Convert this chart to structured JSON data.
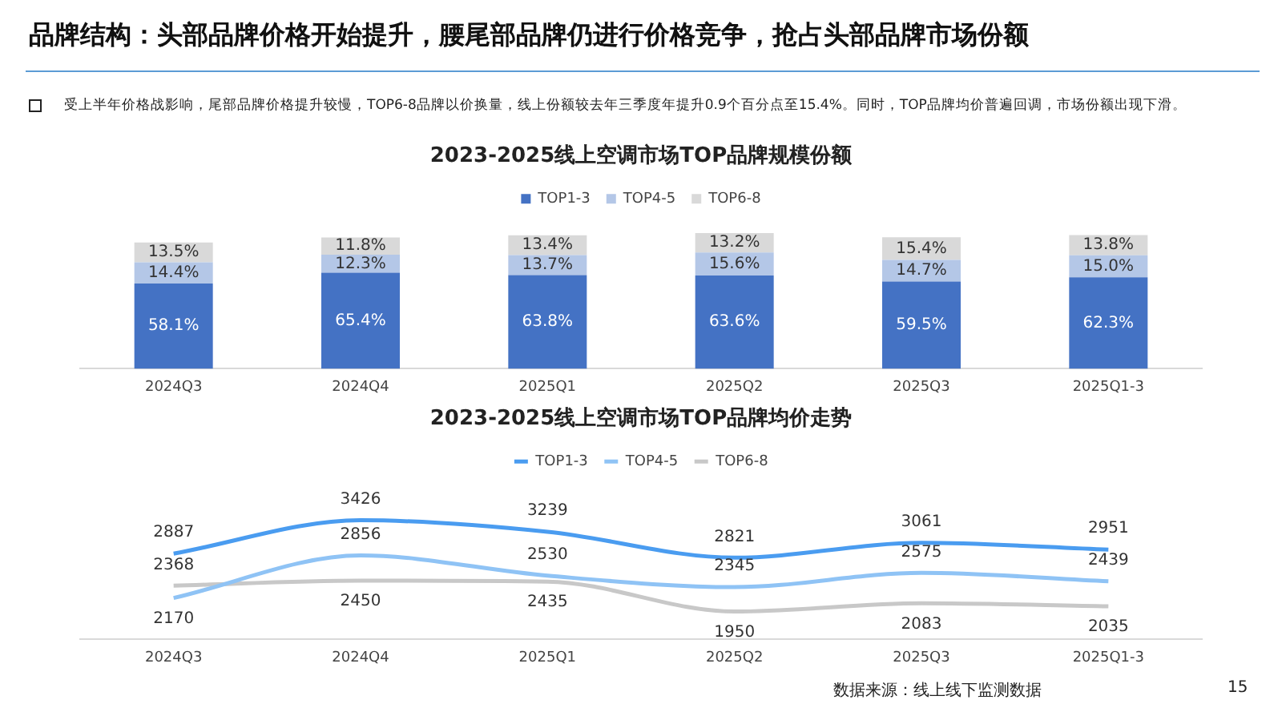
{
  "chart_data": [
    {
      "type": "bar",
      "title": "2023-2025线上空调市场TOP品牌规模份额",
      "stacked": true,
      "legend": "top",
      "annotations": [
        "品牌结构：头部品牌价格开始提升，腰尾部品牌仍进行价格竞争，抢占头部品牌市场份额",
        "受上半年价格战影响，尾部品牌价格提升较慢，TOP6-8品牌以价换量，线上份额较去年三季度年提升0.9个百分点至15.4%。同时，TOP品牌均价普遍回调，市场份额出现下滑。"
      ],
      "categories": [
        "2024Q3",
        "2024Q4",
        "2025Q1",
        "2025Q2",
        "2025Q3",
        "2025Q1-3"
      ],
      "series": [
        {
          "name": "TOP1-3",
          "color": "#4472c4",
          "values": [
            58.1,
            65.4,
            63.8,
            63.6,
            59.5,
            62.3
          ],
          "value_labels": [
            "58.1%",
            "65.4%",
            "63.8%",
            "63.6%",
            "59.5%",
            "62.3%"
          ]
        },
        {
          "name": "TOP4-5",
          "color": "#b4c7e7",
          "values": [
            14.4,
            12.3,
            13.7,
            15.6,
            14.7,
            15.0
          ],
          "value_labels": [
            "14.4%",
            "12.3%",
            "13.7%",
            "15.6%",
            "14.7%",
            "15.0%"
          ]
        },
        {
          "name": "TOP6-8",
          "color": "#d9d9d9",
          "values": [
            13.5,
            11.8,
            13.4,
            13.2,
            15.4,
            13.8
          ],
          "value_labels": [
            "13.5%",
            "11.8%",
            "13.4%",
            "13.2%",
            "15.4%",
            "13.8%"
          ]
        }
      ]
    },
    {
      "type": "line",
      "title": "2023-2025线上空调市场TOP品牌均价走势",
      "legend": "top",
      "data_labels": true,
      "marker": "none",
      "annotations": [
        "数据来源：线上线下监测数据",
        "15"
      ],
      "categories": [
        "2024Q3",
        "2024Q4",
        "2025Q1",
        "2025Q2",
        "2025Q3",
        "2025Q1-3"
      ],
      "series": [
        {
          "name": "TOP1-3",
          "color": "#4a9cf0",
          "values": [
            2887,
            3426,
            3239,
            2821,
            3061,
            2951
          ]
        },
        {
          "name": "TOP4-5",
          "color": "#8fc3f5",
          "values": [
            2170,
            2856,
            2530,
            2345,
            2575,
            2439
          ]
        },
        {
          "name": "TOP6-8",
          "color": "#c8c8c8",
          "values": [
            2368,
            2450,
            2435,
            1950,
            2083,
            2035
          ]
        }
      ]
    }
  ]
}
